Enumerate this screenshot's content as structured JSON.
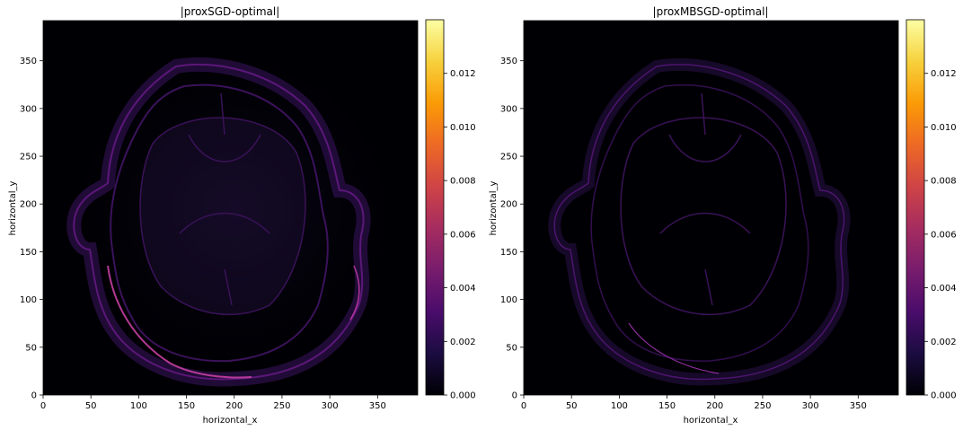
{
  "chart_data": [
    {
      "type": "heatmap",
      "title": "|proxSGD-optimal|",
      "xlabel": "horizontal_x",
      "ylabel": "horizontal_y",
      "xlim": [
        0,
        392
      ],
      "ylim": [
        0,
        392
      ],
      "xticks": [
        0,
        50,
        100,
        150,
        200,
        250,
        300,
        350
      ],
      "yticks": [
        0,
        50,
        100,
        150,
        200,
        250,
        300,
        350
      ],
      "colormap": "inferno",
      "colorbar": {
        "range": [
          0,
          0.014
        ],
        "ticks": [
          0,
          0.002,
          0.004,
          0.006,
          0.008,
          0.01,
          0.012
        ],
        "ticklabels": [
          "0.000",
          "0.002",
          "0.004",
          "0.006",
          "0.008",
          "0.010",
          "0.012"
        ]
      }
    },
    {
      "type": "heatmap",
      "title": "|proxMBSGD-optimal|",
      "xlabel": "horizontal_x",
      "ylabel": "horizontal_y",
      "xlim": [
        0,
        392
      ],
      "ylim": [
        0,
        392
      ],
      "xticks": [
        0,
        50,
        100,
        150,
        200,
        250,
        300,
        350
      ],
      "yticks": [
        0,
        50,
        100,
        150,
        200,
        250,
        300,
        350
      ],
      "colormap": "inferno",
      "colorbar": {
        "range": [
          0,
          0.014
        ],
        "ticks": [
          0,
          0.002,
          0.004,
          0.006,
          0.008,
          0.01,
          0.012
        ],
        "ticklabels": [
          "0.000",
          "0.002",
          "0.004",
          "0.006",
          "0.008",
          "0.010",
          "0.012"
        ]
      }
    }
  ],
  "colors": {
    "background": "#000004",
    "inferno_stops": [
      "#000004",
      "#1b0c41",
      "#4a0c6b",
      "#781c6d",
      "#a52c60",
      "#cf4446",
      "#ed6925",
      "#fb9b06",
      "#f7d13d",
      "#fcffa4"
    ]
  }
}
